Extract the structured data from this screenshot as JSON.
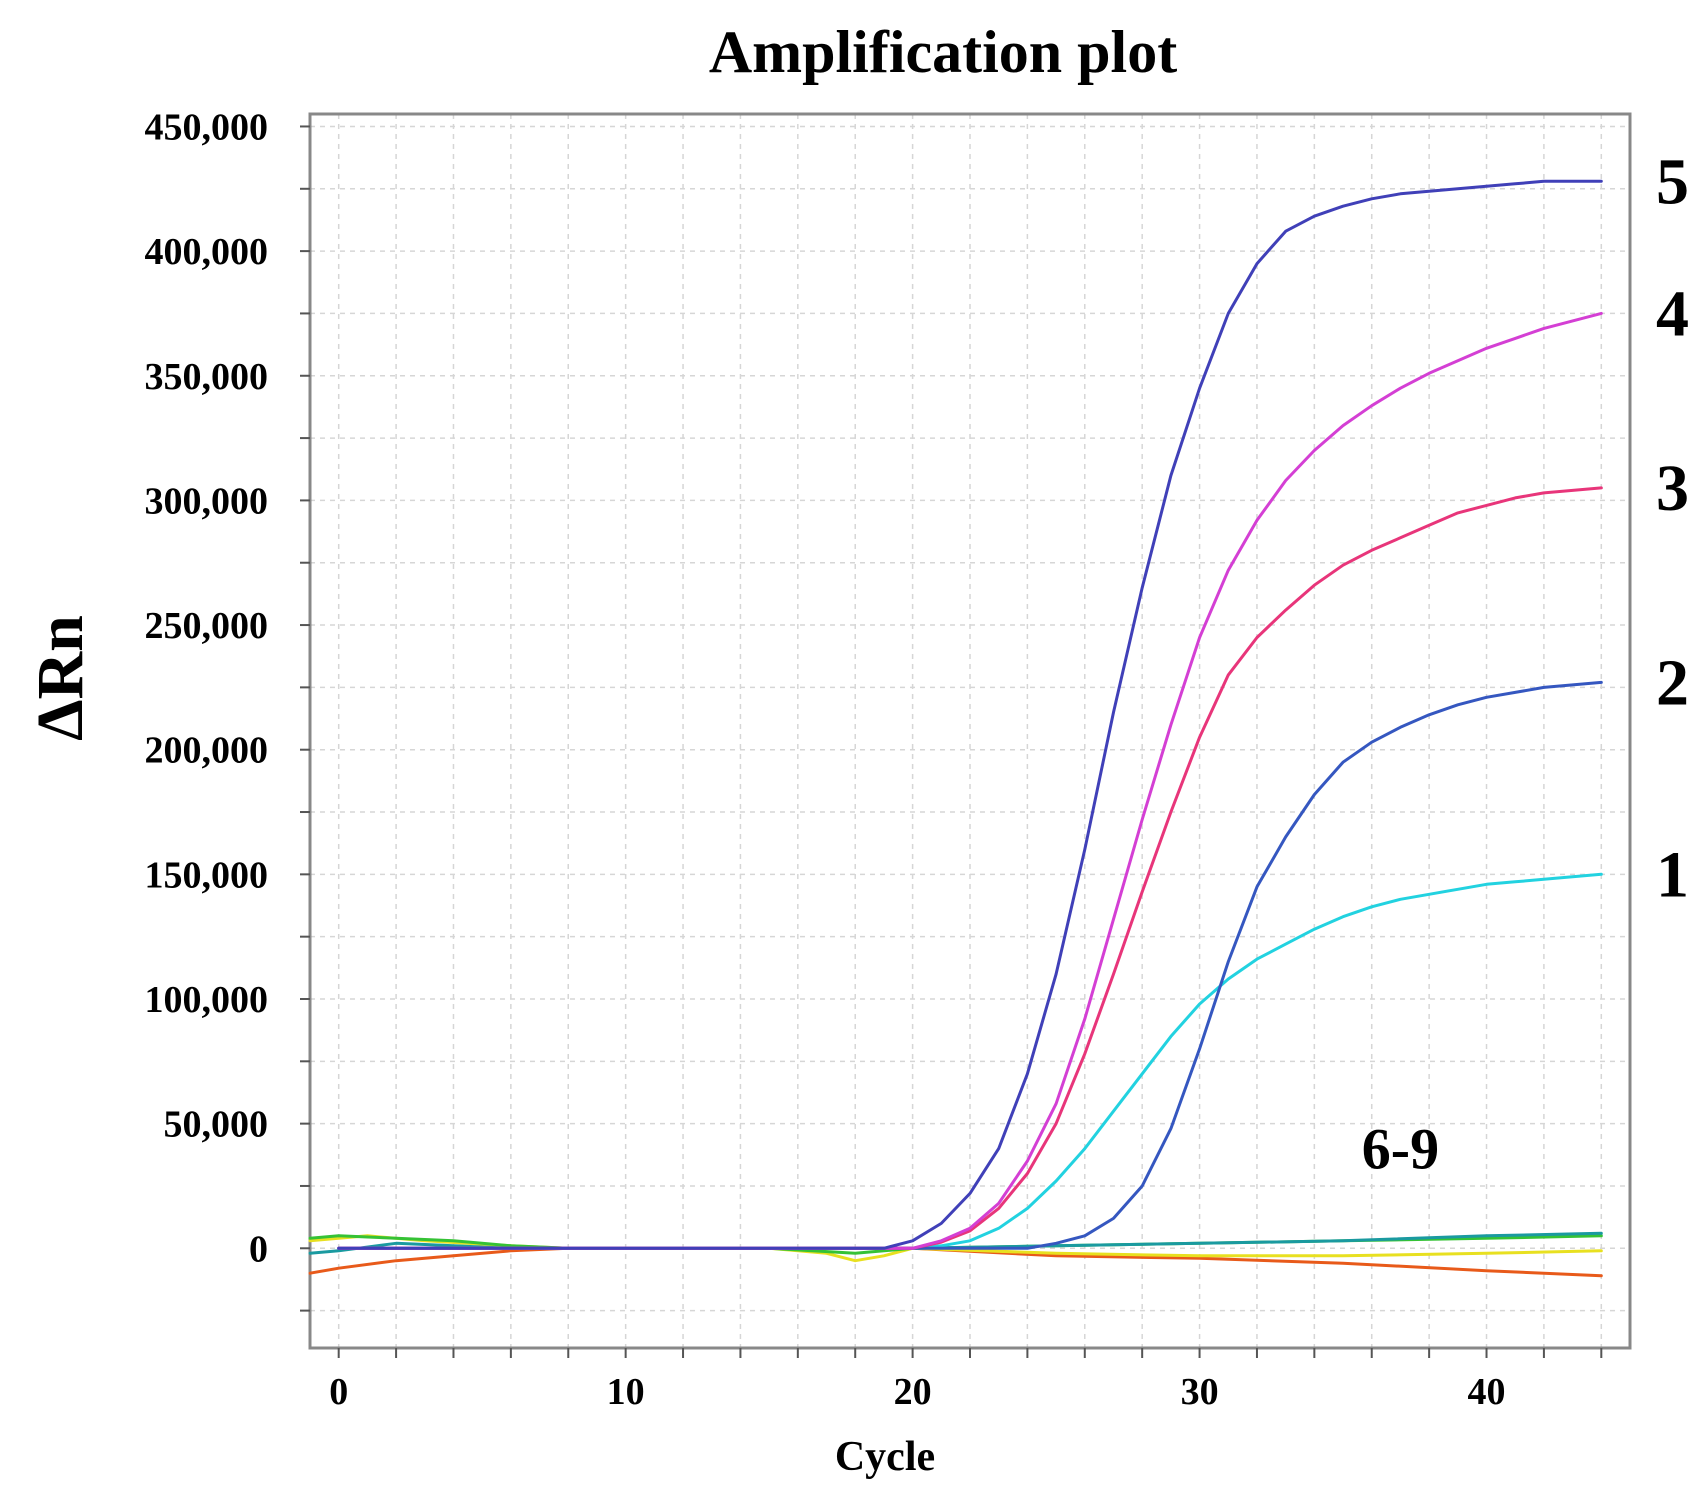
{
  "chart_data": {
    "type": "line",
    "title": "Amplification plot",
    "xlabel": "Cycle",
    "ylabel": "ΔRn",
    "xlim": [
      -1,
      45
    ],
    "ylim": [
      -40000,
      455000
    ],
    "x_ticks": [
      0,
      10,
      20,
      30,
      40
    ],
    "x_tick_labels": [
      "0",
      "10",
      "20",
      "30",
      "40"
    ],
    "y_ticks": [
      0,
      50000,
      100000,
      150000,
      200000,
      250000,
      300000,
      350000,
      400000,
      450000
    ],
    "y_tick_labels": [
      "0",
      "50,000",
      "100,000",
      "150,000",
      "200,000",
      "250,000",
      "300,000",
      "350,000",
      "400,000",
      "450,000"
    ],
    "grid": true,
    "series": [
      {
        "name": "5",
        "label": "5",
        "color": "#4040b8",
        "x": [
          0,
          5,
          10,
          15,
          19,
          20,
          21,
          22,
          23,
          24,
          25,
          26,
          27,
          28,
          29,
          30,
          31,
          32,
          33,
          34,
          35,
          36,
          37,
          38,
          39,
          40,
          41,
          42,
          43,
          44
        ],
        "y": [
          0,
          0,
          0,
          0,
          0,
          3000,
          10000,
          22000,
          40000,
          70000,
          110000,
          160000,
          215000,
          265000,
          310000,
          345000,
          375000,
          395000,
          408000,
          414000,
          418000,
          421000,
          423000,
          424000,
          425000,
          426000,
          427000,
          428000,
          428000,
          428000
        ]
      },
      {
        "name": "4",
        "label": "4",
        "color": "#d43fd4",
        "x": [
          0,
          5,
          10,
          15,
          20,
          21,
          22,
          23,
          24,
          25,
          26,
          27,
          28,
          29,
          30,
          31,
          32,
          33,
          34,
          35,
          36,
          37,
          38,
          39,
          40,
          41,
          42,
          43,
          44
        ],
        "y": [
          0,
          0,
          0,
          0,
          0,
          3000,
          8000,
          18000,
          35000,
          58000,
          92000,
          132000,
          172000,
          210000,
          245000,
          272000,
          292000,
          308000,
          320000,
          330000,
          338000,
          345000,
          351000,
          356000,
          361000,
          365000,
          369000,
          372000,
          375000
        ]
      },
      {
        "name": "3",
        "label": "3",
        "color": "#e8357a",
        "x": [
          0,
          5,
          10,
          15,
          20,
          21,
          22,
          23,
          24,
          25,
          26,
          27,
          28,
          29,
          30,
          31,
          32,
          33,
          34,
          35,
          36,
          37,
          38,
          39,
          40,
          41,
          42,
          43,
          44
        ],
        "y": [
          0,
          0,
          0,
          0,
          0,
          2500,
          7000,
          16000,
          30000,
          50000,
          78000,
          110000,
          143000,
          175000,
          205000,
          230000,
          245000,
          256000,
          266000,
          274000,
          280000,
          285000,
          290000,
          295000,
          298000,
          301000,
          303000,
          304000,
          305000
        ]
      },
      {
        "name": "2",
        "label": "2",
        "color": "#3557c0",
        "x": [
          0,
          10,
          20,
          24,
          25,
          26,
          27,
          28,
          29,
          30,
          31,
          32,
          33,
          34,
          35,
          36,
          37,
          38,
          39,
          40,
          41,
          42,
          43,
          44
        ],
        "y": [
          0,
          0,
          0,
          0,
          2000,
          5000,
          12000,
          25000,
          48000,
          80000,
          115000,
          145000,
          165000,
          182000,
          195000,
          203000,
          209000,
          214000,
          218000,
          221000,
          223000,
          225000,
          226000,
          227000
        ]
      },
      {
        "name": "1",
        "label": "1",
        "color": "#22d2e0",
        "x": [
          0,
          10,
          20,
          21,
          22,
          23,
          24,
          25,
          26,
          27,
          28,
          29,
          30,
          31,
          32,
          33,
          34,
          35,
          36,
          37,
          38,
          39,
          40,
          41,
          42,
          43,
          44
        ],
        "y": [
          0,
          0,
          0,
          1000,
          3000,
          8000,
          16000,
          27000,
          40000,
          55000,
          70000,
          85000,
          98000,
          108000,
          116000,
          122000,
          128000,
          133000,
          137000,
          140000,
          142000,
          144000,
          146000,
          147000,
          148000,
          149000,
          150000
        ]
      },
      {
        "name": "6",
        "color": "#1a9aa0",
        "x": [
          -1,
          0,
          2,
          4,
          6,
          8,
          10,
          15,
          20,
          25,
          30,
          35,
          40,
          44
        ],
        "y": [
          -2000,
          -1000,
          2000,
          1000,
          0,
          0,
          0,
          0,
          0,
          1000,
          2000,
          3000,
          5000,
          6000
        ]
      },
      {
        "name": "7",
        "color": "#35c235",
        "x": [
          -1,
          0,
          2,
          4,
          6,
          8,
          10,
          15,
          18,
          20,
          25,
          30,
          35,
          40,
          44
        ],
        "y": [
          4000,
          5000,
          4000,
          3000,
          1000,
          0,
          0,
          0,
          -2000,
          0,
          1000,
          2000,
          3000,
          4000,
          5000
        ]
      },
      {
        "name": "8",
        "color": "#e8e020",
        "x": [
          -1,
          1,
          3,
          6,
          8,
          10,
          15,
          17,
          18,
          19,
          20,
          25,
          30,
          35,
          40,
          44
        ],
        "y": [
          3000,
          5000,
          3000,
          1000,
          0,
          0,
          0,
          -2000,
          -5000,
          -3000,
          0,
          -2000,
          -3000,
          -3000,
          -2000,
          -1000
        ]
      },
      {
        "name": "9",
        "color": "#e85a1a",
        "x": [
          -1,
          0,
          2,
          4,
          6,
          8,
          10,
          15,
          20,
          25,
          30,
          35,
          40,
          44
        ],
        "y": [
          -10000,
          -8000,
          -5000,
          -3000,
          -1000,
          0,
          0,
          0,
          0,
          -3000,
          -4000,
          -6000,
          -9000,
          -11000
        ]
      }
    ],
    "annotations": [
      {
        "text": "6-9",
        "x": 37,
        "y": 32000
      }
    ]
  }
}
